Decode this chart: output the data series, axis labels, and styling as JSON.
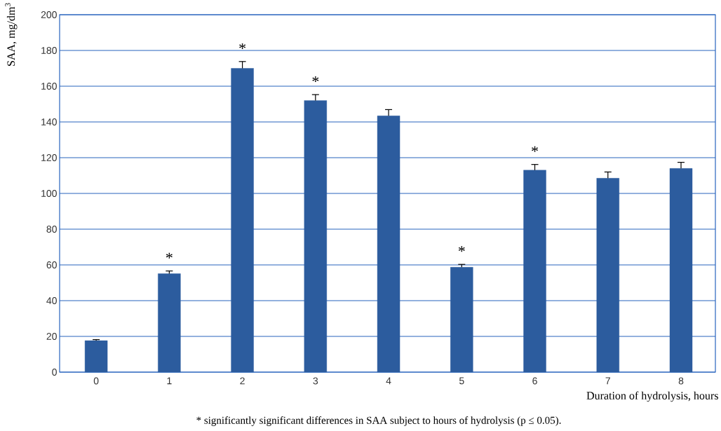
{
  "chart_data": {
    "type": "bar",
    "ylabel": "SAA, mg/dm$^{3}$",
    "xlabel": "Duration of hydrolysis, hours",
    "categories": [
      "0",
      "1",
      "2",
      "3",
      "4",
      "5",
      "6",
      "7",
      "8"
    ],
    "values": [
      17.6,
      55.1,
      170,
      152,
      143.4,
      58.7,
      113,
      108.5,
      114
    ],
    "errors": [
      0.6,
      1.5,
      3.8,
      3.3,
      3.5,
      1.6,
      3.2,
      3.5,
      3.4
    ],
    "color": "#2c5c9e",
    "ylim": [
      0,
      200
    ],
    "yticks": [
      0,
      20,
      40,
      60,
      80,
      100,
      120,
      140,
      160,
      180,
      200
    ],
    "grid": "y",
    "annotations": [
      {
        "text": "*",
        "x": "1",
        "y": 55.1
      },
      {
        "text": "*",
        "x": "2",
        "y": 170
      },
      {
        "text": "*",
        "x": "3",
        "y": 152
      },
      {
        "text": "*",
        "x": "5",
        "y": 58.7
      },
      {
        "text": "*",
        "x": "6",
        "y": 113
      },
      "* significantly significant differences in SAA subject to hours of hydrolysis (p ≤ 0.05)."
    ]
  }
}
